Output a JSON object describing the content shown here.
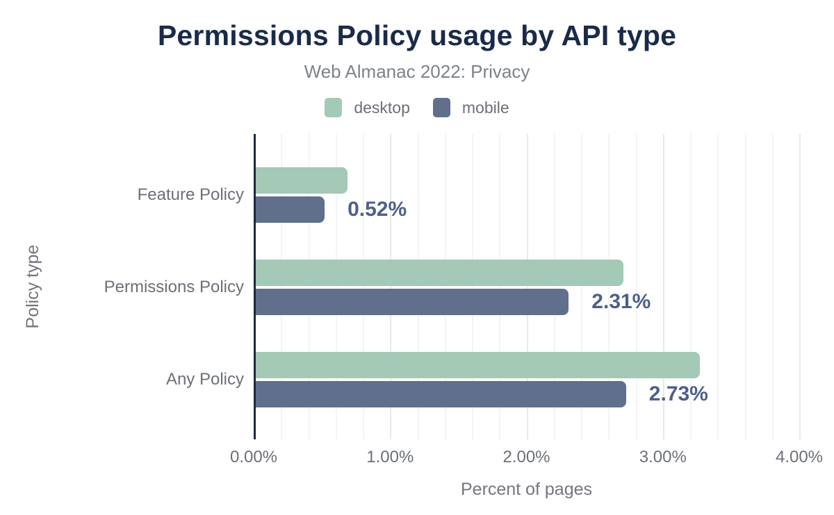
{
  "chart_data": {
    "type": "bar",
    "orientation": "horizontal",
    "title": "Permissions Policy usage by API type",
    "subtitle": "Web Almanac 2022: Privacy",
    "xlabel": "Percent of pages",
    "ylabel": "Policy type",
    "categories": [
      "Feature Policy",
      "Permissions Policy",
      "Any Policy"
    ],
    "series": [
      {
        "name": "desktop",
        "color": "#a4c9b6",
        "values": [
          0.69,
          2.71,
          3.27
        ]
      },
      {
        "name": "mobile",
        "color": "#5f6f8c",
        "values": [
          0.52,
          2.31,
          2.73
        ]
      }
    ],
    "annotations": [
      {
        "category": "Feature Policy",
        "series": "mobile",
        "text": "0.52%"
      },
      {
        "category": "Permissions Policy",
        "series": "mobile",
        "text": "2.31%"
      },
      {
        "category": "Any Policy",
        "series": "mobile",
        "text": "2.73%"
      }
    ],
    "x_ticks": [
      {
        "value": 0,
        "label": "0.00%"
      },
      {
        "value": 1,
        "label": "1.00%"
      },
      {
        "value": 2,
        "label": "2.00%"
      },
      {
        "value": 3,
        "label": "3.00%"
      },
      {
        "value": 4,
        "label": "4.00%"
      }
    ],
    "xlim": [
      0,
      4
    ],
    "grid": {
      "minor_step": 0.2,
      "major_step": 1.0,
      "orientation": "vertical"
    },
    "legend_position": "top"
  },
  "colors": {
    "background": "#ffffff",
    "title_text": "#1a2b49",
    "subtitle_text": "#7d828a",
    "axis_line": "#1b2a41",
    "label_text": "#6b7077",
    "axis_title_text": "#73767d",
    "annotation_text": "#4d608a",
    "gridline_minor": "#f4f4f6",
    "gridline_major": "#e9e9ec",
    "desktop_series": "#a4c9b6",
    "mobile_series": "#5f6f8c"
  }
}
